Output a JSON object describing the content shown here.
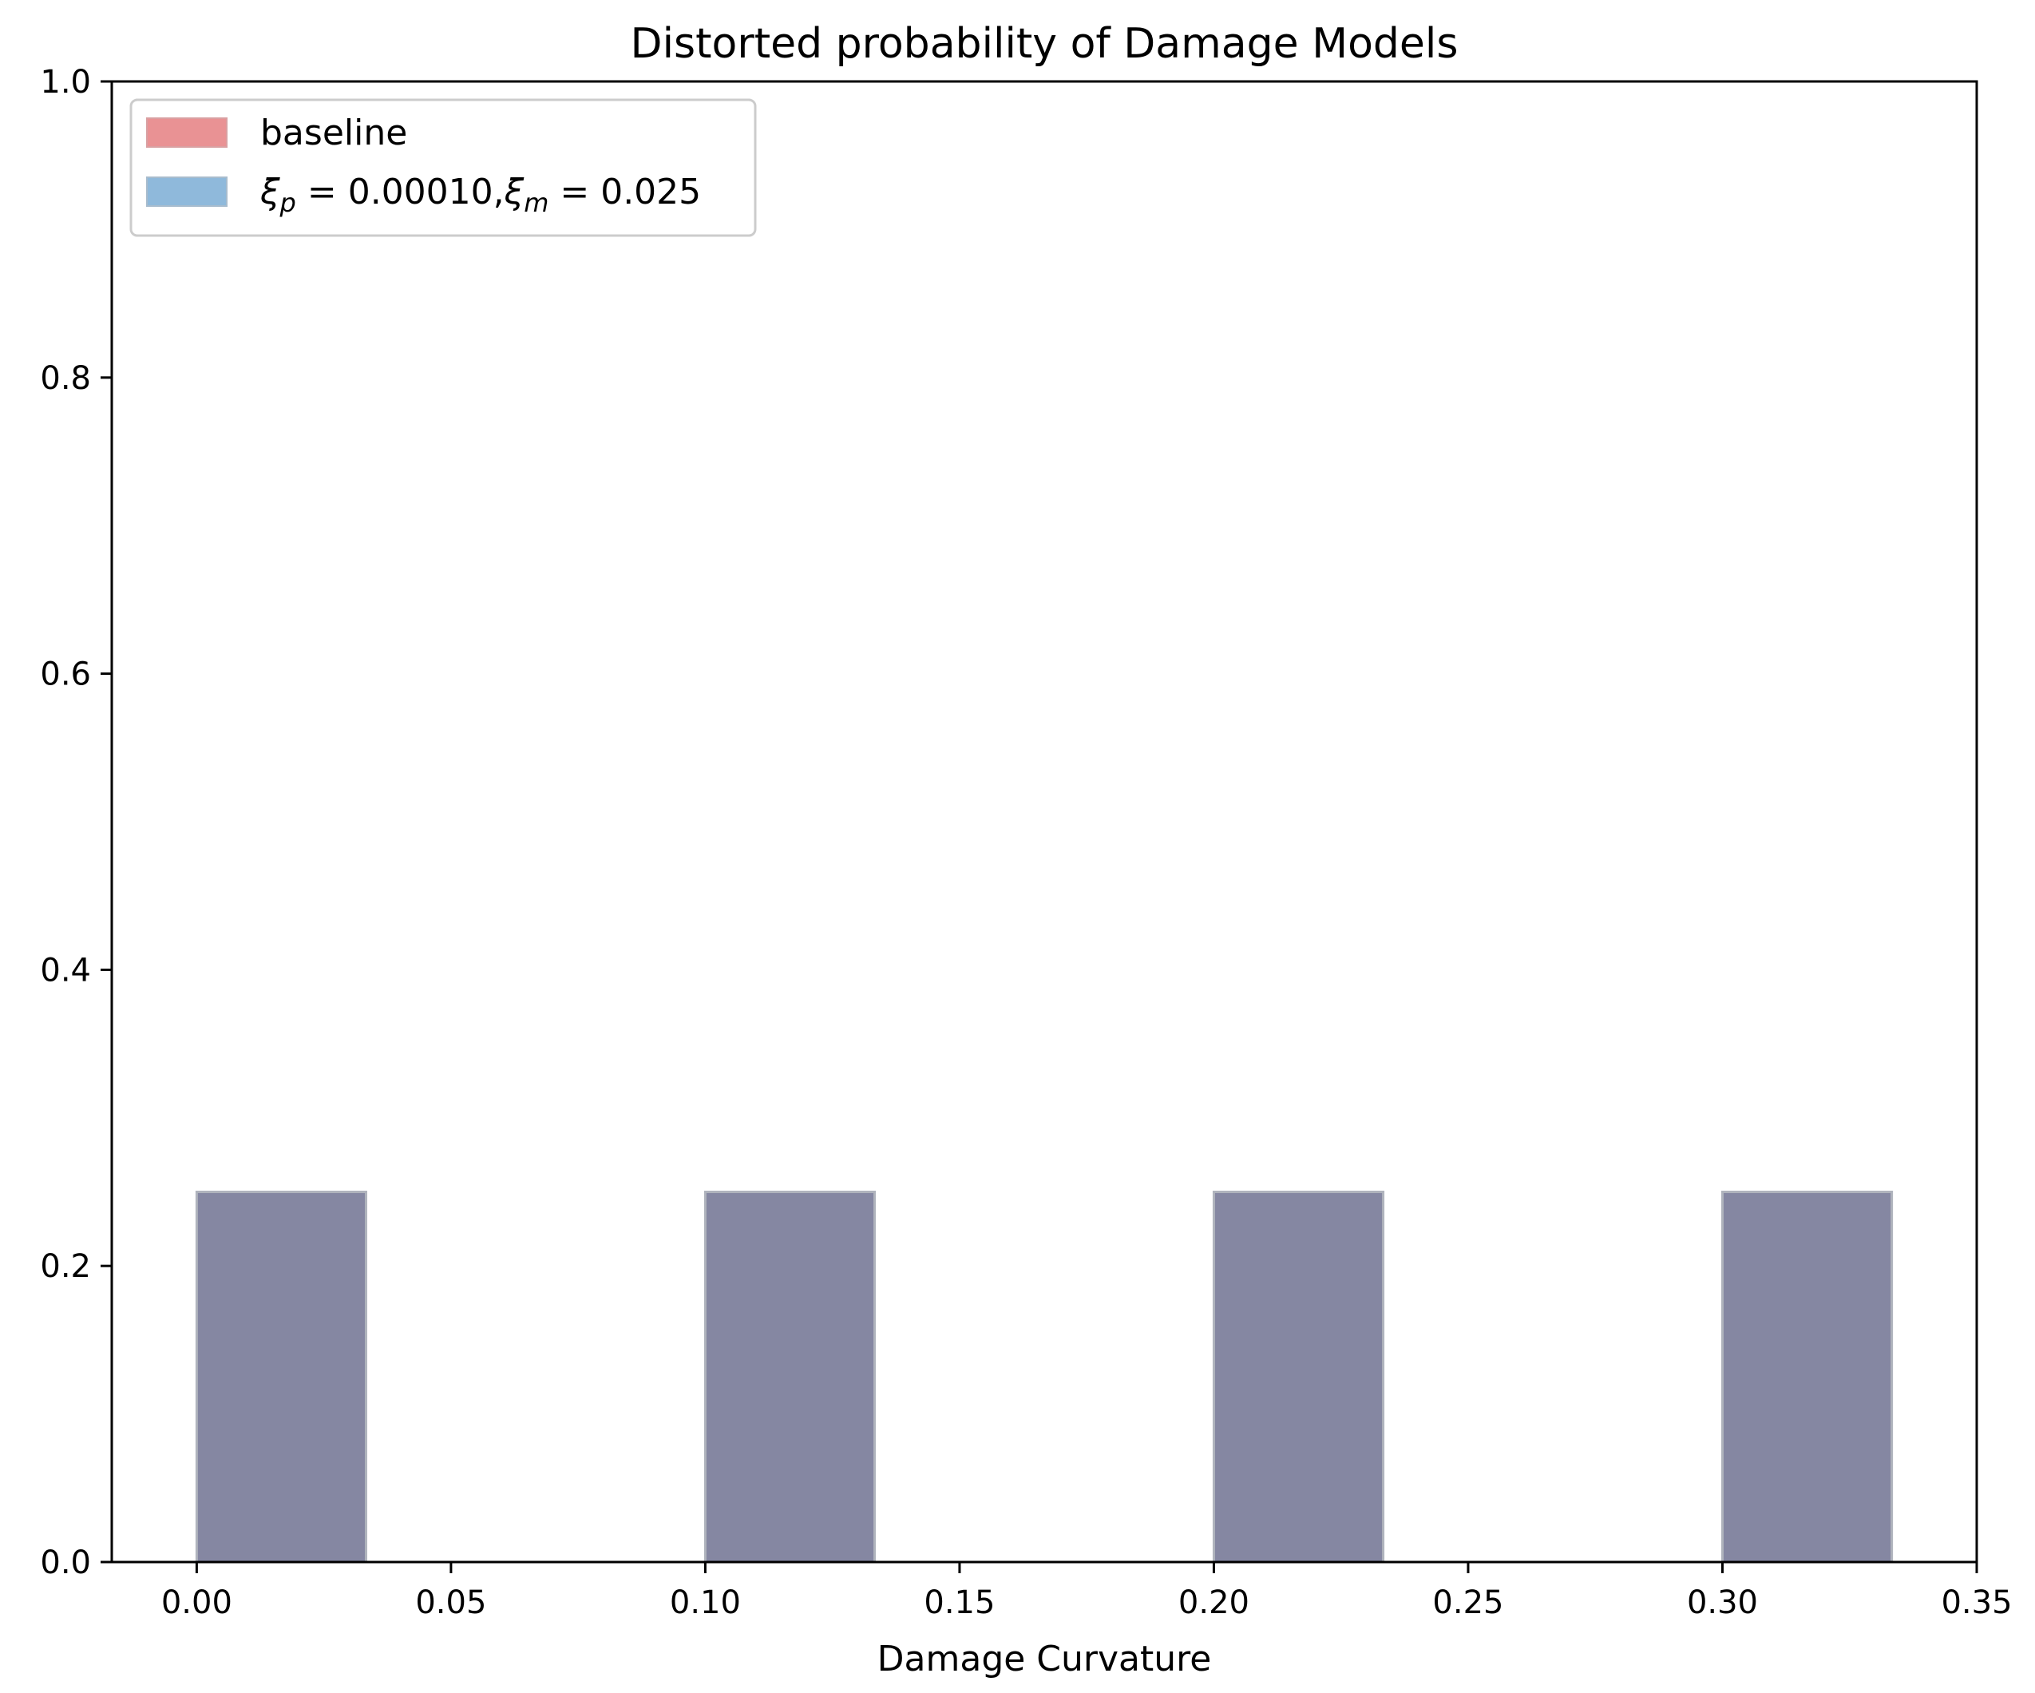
{
  "chart_data": {
    "type": "bar",
    "title": "Distorted probability of Damage Models",
    "xlabel": "Damage Curvature",
    "ylabel": "",
    "xlim": [
      -0.0167,
      0.35
    ],
    "ylim": [
      0,
      1.0
    ],
    "x_ticks": [
      "0.00",
      "0.05",
      "0.10",
      "0.15",
      "0.20",
      "0.25",
      "0.30",
      "0.35"
    ],
    "x_tick_values": [
      0.0,
      0.05,
      0.1,
      0.15,
      0.2,
      0.25,
      0.3,
      0.35
    ],
    "y_ticks": [
      "0.0",
      "0.2",
      "0.4",
      "0.6",
      "0.8",
      "1.0"
    ],
    "y_tick_values": [
      0.0,
      0.2,
      0.4,
      0.6,
      0.8,
      1.0
    ],
    "bin_width": 0.0333,
    "bins": [
      0.0,
      0.1,
      0.2,
      0.3
    ],
    "series": [
      {
        "name": "baseline",
        "values": [
          0.25,
          0.25,
          0.25,
          0.25
        ],
        "color": "#d62728"
      },
      {
        "name": "ξp = 0.00010, ξm = 0.025",
        "values": [
          0.25,
          0.25,
          0.25,
          0.25
        ],
        "color": "#1f77b4"
      }
    ],
    "bar_opacity": 0.5,
    "overlap_color": "#8587a2",
    "bar_edge_color": "#b0b4bd",
    "legend": {
      "placement": "top-left",
      "entries": [
        {
          "label": "baseline",
          "swatch_color": "#e99294"
        },
        {
          "label_symbol_1": "ξ",
          "label_sub_1": "p",
          "label_eq_1": " = 0.00010,",
          "label_symbol_2": "ξ",
          "label_sub_2": "m",
          "label_eq_2": " = 0.025",
          "swatch_color": "#8fb9db"
        }
      ]
    },
    "grid": false
  }
}
